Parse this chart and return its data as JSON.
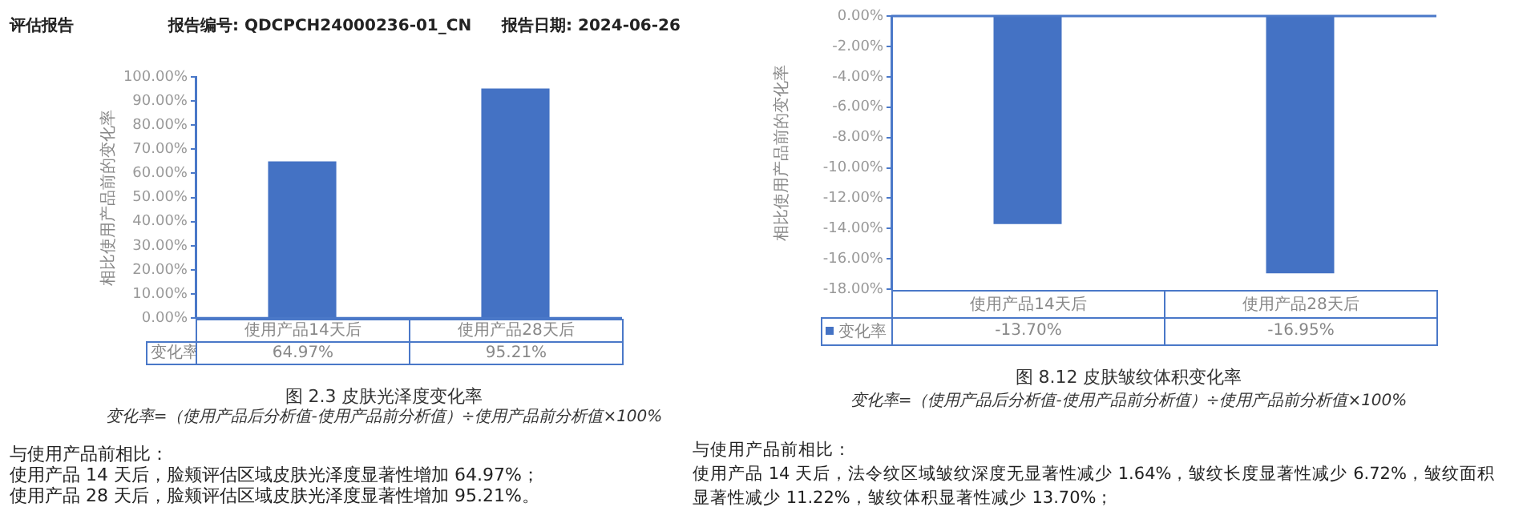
{
  "chart_data": [
    {
      "type": "bar",
      "title": "图 2.3 皮肤光泽度变化率",
      "subtitle": "变化率=（使用产品后分析值-使用产品前分析值）÷使用产品前分析值×100%",
      "ylabel": "相比使用产品前的变化率",
      "categories": [
        "使用产品14天后",
        "使用产品28天后"
      ],
      "series": [
        {
          "name": "变化率",
          "color": "#4472c4",
          "values": [
            64.97,
            95.21
          ],
          "value_labels": [
            "64.97%",
            "95.21%"
          ]
        }
      ],
      "ylim": [
        0,
        100
      ],
      "yticks": [
        {
          "value": 0,
          "label": "0.00%"
        },
        {
          "value": 10,
          "label": "10.00%"
        },
        {
          "value": 20,
          "label": "20.00%"
        },
        {
          "value": 30,
          "label": "30.00%"
        },
        {
          "value": 40,
          "label": "40.00%"
        },
        {
          "value": 50,
          "label": "50.00%"
        },
        {
          "value": 60,
          "label": "60.00%"
        },
        {
          "value": 70,
          "label": "70.00%"
        },
        {
          "value": 80,
          "label": "80.00%"
        },
        {
          "value": 90,
          "label": "90.00%"
        },
        {
          "value": 100,
          "label": "100.00%"
        }
      ],
      "annotations": [
        "评估报告",
        "报告编号: QDCPCH24000236-01_CN",
        "报告日期: 2024-06-26",
        "与使用产品前相比：",
        "使用产品 14 天后，脸颊评估区域皮肤光泽度显著性增加 64.97%；",
        "使用产品 28 天后，脸颊评估区域皮肤光泽度显著性增加 95.21%。"
      ]
    },
    {
      "type": "bar",
      "title": "图 8.12 皮肤皱纹体积变化率",
      "subtitle": "变化率=（使用产品后分析值-使用产品前分析值）÷使用产品前分析值×100%",
      "ylabel": "相比使用产品前的变化率",
      "categories": [
        "使用产品14天后",
        "使用产品28天后"
      ],
      "series": [
        {
          "name": "变化率",
          "color": "#4472c4",
          "values": [
            -13.7,
            -16.95
          ],
          "value_labels": [
            "-13.70%",
            "-16.95%"
          ]
        }
      ],
      "legend": "bottom",
      "ylim": [
        -18,
        0
      ],
      "yticks": [
        {
          "value": 0,
          "label": "0.00%"
        },
        {
          "value": -2,
          "label": "-2.00%"
        },
        {
          "value": -4,
          "label": "-4.00%"
        },
        {
          "value": -6,
          "label": "-6.00%"
        },
        {
          "value": -8,
          "label": "-8.00%"
        },
        {
          "value": -10,
          "label": "-10.00%"
        },
        {
          "value": -12,
          "label": "-12.00%"
        },
        {
          "value": -14,
          "label": "-14.00%"
        },
        {
          "value": -16,
          "label": "-16.00%"
        },
        {
          "value": -18,
          "label": "-18.00%"
        }
      ],
      "annotations": [
        "与使用产品前相比：",
        "使用产品 14 天后，法令纹区域皱纹深度无显著性减少 1.64%，皱纹长度显著性减少 6.72%，皱纹面积",
        "显著性减少 11.22%，皱纹体积显著性减少 13.70%；"
      ]
    }
  ]
}
